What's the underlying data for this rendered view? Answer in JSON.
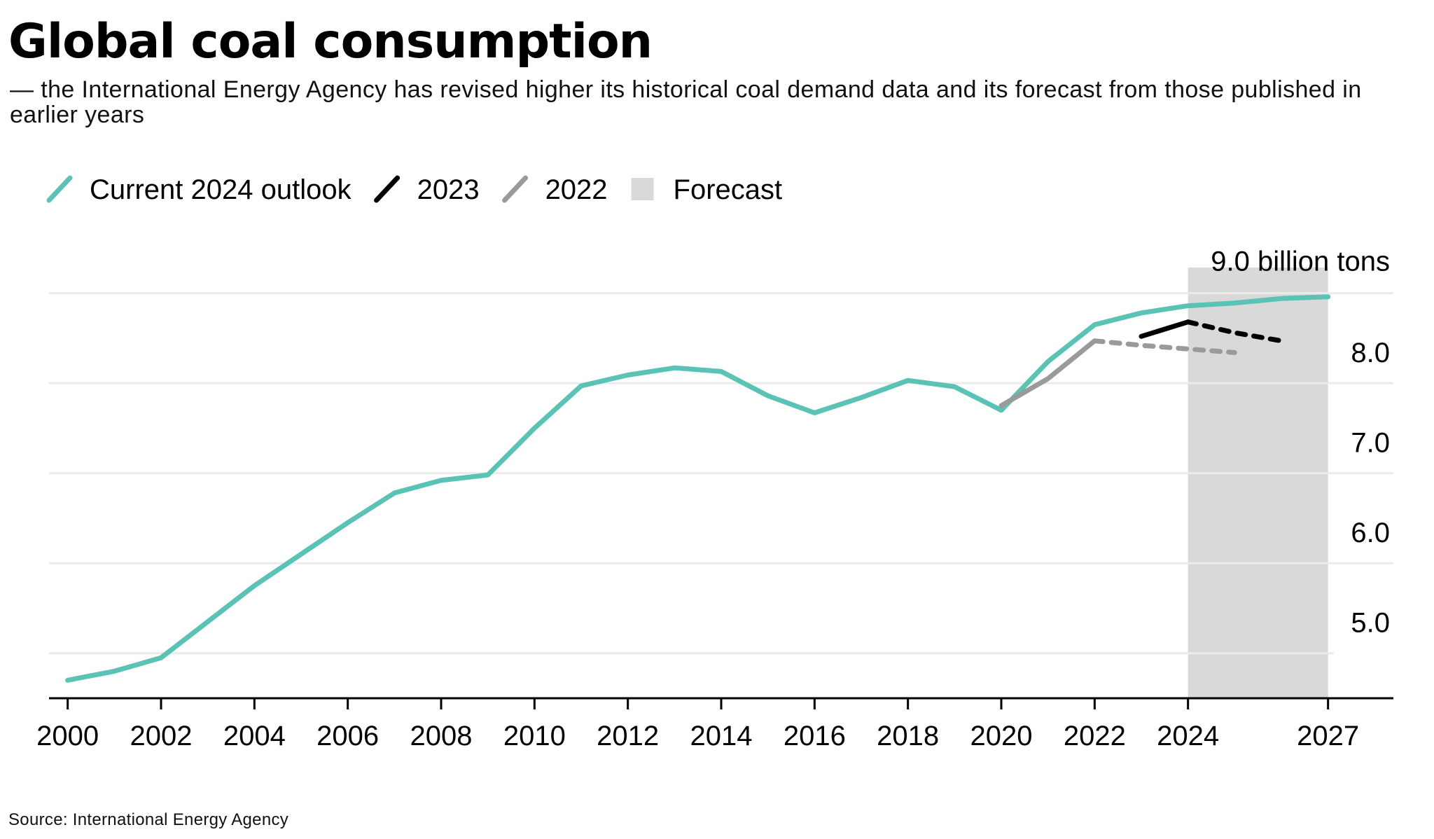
{
  "title": "Global coal consumption",
  "subtitle": "— the International Energy Agency has revised higher its historical coal demand data and its forecast from those published in earlier years",
  "source": "Source: International Energy Agency",
  "colors": {
    "current": "#5BC2B6",
    "y2023": "#000000",
    "y2022": "#9A9A9A",
    "forecast": "#D9D9D9",
    "grid": "#EBEBEB",
    "axis": "#000000"
  },
  "chart_data": {
    "type": "line",
    "title": "Global coal consumption",
    "unit_label": "9.0 billion tons",
    "y_ticks": [
      {
        "value": 9,
        "label": "9.0 billion tons"
      },
      {
        "value": 8,
        "label": "8.0"
      },
      {
        "value": 7,
        "label": "7.0"
      },
      {
        "value": 6,
        "label": "6.0"
      },
      {
        "value": 5,
        "label": "5.0"
      }
    ],
    "ylim": [
      4.5,
      9.3
    ],
    "xlim": [
      1999.6,
      2028.4
    ],
    "x_ticks": [
      {
        "value": 2000,
        "label": "2000"
      },
      {
        "value": 2002,
        "label": "2002"
      },
      {
        "value": 2004,
        "label": "2004"
      },
      {
        "value": 2006,
        "label": "2006"
      },
      {
        "value": 2008,
        "label": "2008"
      },
      {
        "value": 2010,
        "label": "2010"
      },
      {
        "value": 2012,
        "label": "2012"
      },
      {
        "value": 2014,
        "label": "2014"
      },
      {
        "value": 2016,
        "label": "2016"
      },
      {
        "value": 2018,
        "label": "2018"
      },
      {
        "value": 2020,
        "label": "2020"
      },
      {
        "value": 2022,
        "label": "2022"
      },
      {
        "value": 2024,
        "label": "2024"
      },
      {
        "value": 2027,
        "label": "2027"
      }
    ],
    "forecast_range": [
      2024,
      2027
    ],
    "legend": [
      {
        "name": "Current 2024 outlook",
        "type": "line",
        "color": "#5BC2B6"
      },
      {
        "name": "2023",
        "type": "line",
        "color": "#000000"
      },
      {
        "name": "2022",
        "type": "line",
        "color": "#9A9A9A"
      },
      {
        "name": "Forecast",
        "type": "box",
        "color": "#D9D9D9"
      }
    ],
    "series": [
      {
        "name": "Current 2024 outlook",
        "color": "#5BC2B6",
        "x": [
          2000,
          2001,
          2002,
          2003,
          2004,
          2005,
          2006,
          2007,
          2008,
          2009,
          2010,
          2011,
          2012,
          2013,
          2014,
          2015,
          2016,
          2017,
          2018,
          2019,
          2020,
          2021,
          2022,
          2023,
          2024,
          2025,
          2026,
          2027
        ],
        "values": [
          4.7,
          4.8,
          4.95,
          5.35,
          5.75,
          6.1,
          6.45,
          6.78,
          6.92,
          6.98,
          7.5,
          7.97,
          8.09,
          8.17,
          8.13,
          7.86,
          7.67,
          7.84,
          8.03,
          7.96,
          7.7,
          8.24,
          8.65,
          8.78,
          8.86,
          8.89,
          8.94,
          8.96
        ]
      },
      {
        "name": "2023",
        "color": "#000000",
        "segments": [
          {
            "style": "solid",
            "x": [
              2023,
              2024
            ],
            "values": [
              8.52,
              8.68
            ]
          },
          {
            "style": "dashed",
            "x": [
              2024,
              2025,
              2026
            ],
            "values": [
              8.68,
              8.56,
              8.47
            ]
          }
        ]
      },
      {
        "name": "2022",
        "color": "#9A9A9A",
        "segments": [
          {
            "style": "solid",
            "x": [
              2020,
              2021,
              2022
            ],
            "values": [
              7.75,
              8.05,
              8.47
            ]
          },
          {
            "style": "dashed",
            "x": [
              2022,
              2023,
              2024,
              2025
            ],
            "values": [
              8.47,
              8.42,
              8.38,
              8.34
            ]
          }
        ]
      }
    ]
  }
}
